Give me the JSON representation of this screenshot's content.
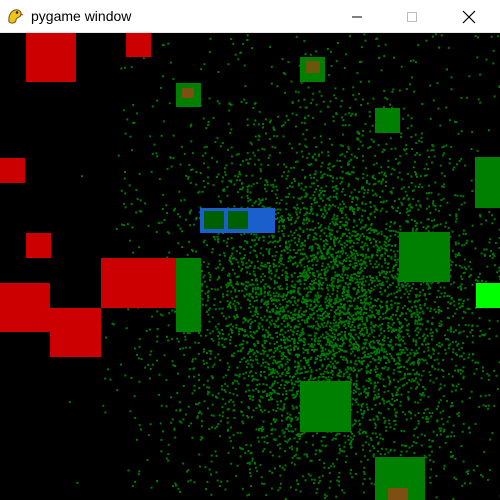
{
  "window": {
    "title": "pygame window",
    "app_icon": "snake-icon",
    "controls": {
      "minimize_icon": "minimize-icon",
      "maximize_icon": "maximize-icon",
      "close_icon": "close-icon"
    }
  },
  "colors": {
    "background": "#000000",
    "food": "#007a00",
    "green_agent": "#008000",
    "red_agent": "#cc0000",
    "selected_frame": "#1a5fcc",
    "bright_green": "#00ff00",
    "white": "#ffffff"
  }
}
